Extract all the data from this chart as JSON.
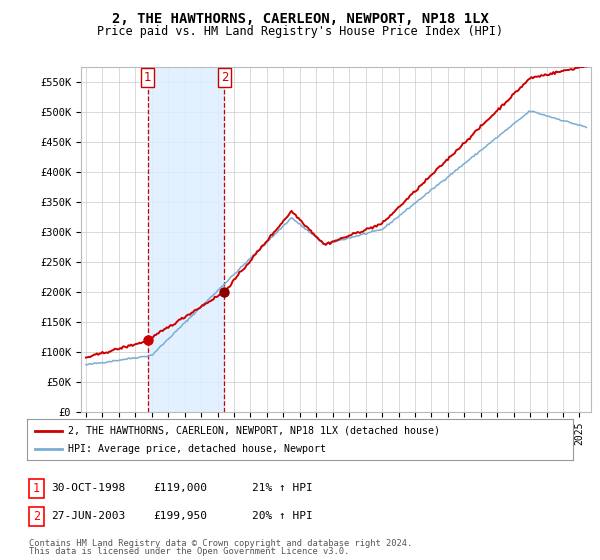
{
  "title": "2, THE HAWTHORNS, CAERLEON, NEWPORT, NP18 1LX",
  "subtitle": "Price paid vs. HM Land Registry's House Price Index (HPI)",
  "ylim": [
    0,
    575000
  ],
  "yticks": [
    0,
    50000,
    100000,
    150000,
    200000,
    250000,
    300000,
    350000,
    400000,
    450000,
    500000,
    550000
  ],
  "ytick_labels": [
    "£0",
    "£50K",
    "£100K",
    "£150K",
    "£200K",
    "£250K",
    "£300K",
    "£350K",
    "£400K",
    "£450K",
    "£500K",
    "£550K"
  ],
  "sale1_date": "30-OCT-1998",
  "sale1_price": 119000,
  "sale1_price_str": "£119,000",
  "sale1_hpi_pct": "21% ↑ HPI",
  "sale2_date": "27-JUN-2003",
  "sale2_price": 199950,
  "sale2_price_str": "£199,950",
  "sale2_hpi_pct": "20% ↑ HPI",
  "legend_property": "2, THE HAWTHORNS, CAERLEON, NEWPORT, NP18 1LX (detached house)",
  "legend_hpi": "HPI: Average price, detached house, Newport",
  "footnote1": "Contains HM Land Registry data © Crown copyright and database right 2024.",
  "footnote2": "This data is licensed under the Open Government Licence v3.0.",
  "property_line_color": "#cc0000",
  "hpi_line_color": "#7aadd4",
  "shading_color": "#ddeeff",
  "vline_color": "#cc0000",
  "background_color": "#ffffff",
  "grid_color": "#cccccc",
  "sale1_year": 1998.75,
  "sale2_year": 2003.417
}
